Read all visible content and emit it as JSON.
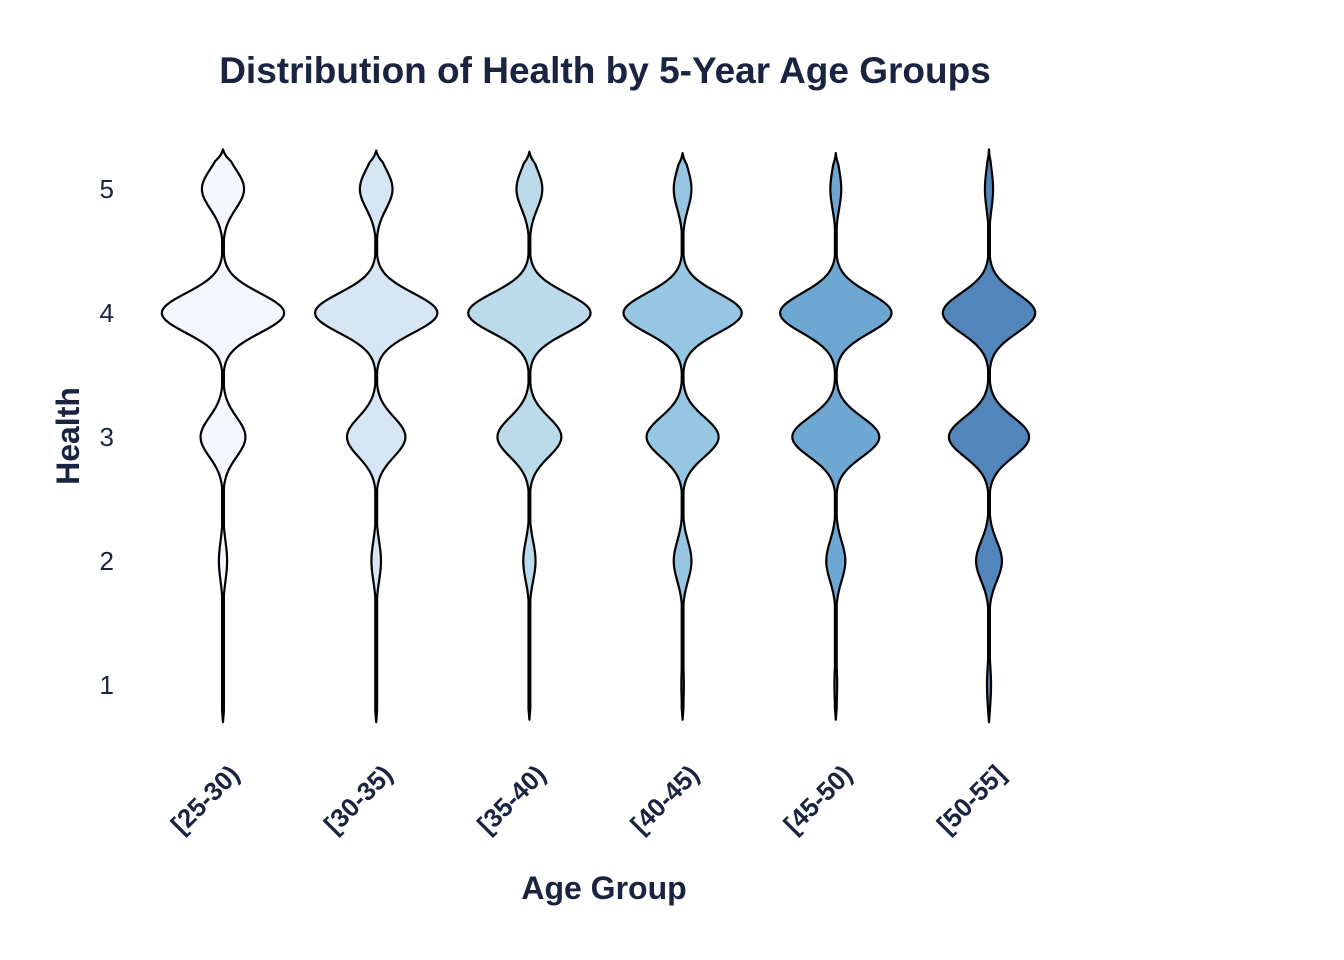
{
  "chart_data": {
    "type": "violin",
    "title": "Distribution of Health by 5-Year Age Groups",
    "xlabel": "Age Group",
    "ylabel": "Health",
    "y_ticks": [
      1,
      2,
      3,
      4,
      5
    ],
    "ylim": [
      0.7,
      5.35
    ],
    "grid": false,
    "legend": "none",
    "categories": [
      "[25-30)",
      "[30-35)",
      "[35-40)",
      "[40-45)",
      "[45-50)",
      "[50-55]"
    ],
    "colors": [
      "#eff3ff",
      "#c6dbef",
      "#9ecae1",
      "#6baed6",
      "#3182bd",
      "#08519c"
    ],
    "fill_opacity": 0.7,
    "text_color": "#1a2340",
    "outline_color": "#000000",
    "series": [
      {
        "values": [
          1,
          2,
          3,
          4,
          5
        ],
        "density_half_width": [
          0.008,
          0.06,
          0.33,
          0.9,
          0.31
        ],
        "y_min": 0.7,
        "y_max": 5.32
      },
      {
        "values": [
          1,
          2,
          3,
          4,
          5
        ],
        "density_half_width": [
          0.01,
          0.07,
          0.43,
          0.9,
          0.24
        ],
        "y_min": 0.7,
        "y_max": 5.31
      },
      {
        "values": [
          1,
          2,
          3,
          4,
          5
        ],
        "density_half_width": [
          0.01,
          0.09,
          0.47,
          0.9,
          0.19
        ],
        "y_min": 0.72,
        "y_max": 5.3
      },
      {
        "values": [
          1,
          2,
          3,
          4,
          5
        ],
        "density_half_width": [
          0.018,
          0.13,
          0.53,
          0.87,
          0.13
        ],
        "y_min": 0.72,
        "y_max": 5.29
      },
      {
        "values": [
          1,
          2,
          3,
          4,
          5
        ],
        "density_half_width": [
          0.02,
          0.14,
          0.64,
          0.82,
          0.08
        ],
        "y_min": 0.72,
        "y_max": 5.29
      },
      {
        "values": [
          1,
          2,
          3,
          4,
          5
        ],
        "density_half_width": [
          0.03,
          0.19,
          0.59,
          0.68,
          0.06
        ],
        "y_min": 0.7,
        "y_max": 5.32
      }
    ]
  }
}
